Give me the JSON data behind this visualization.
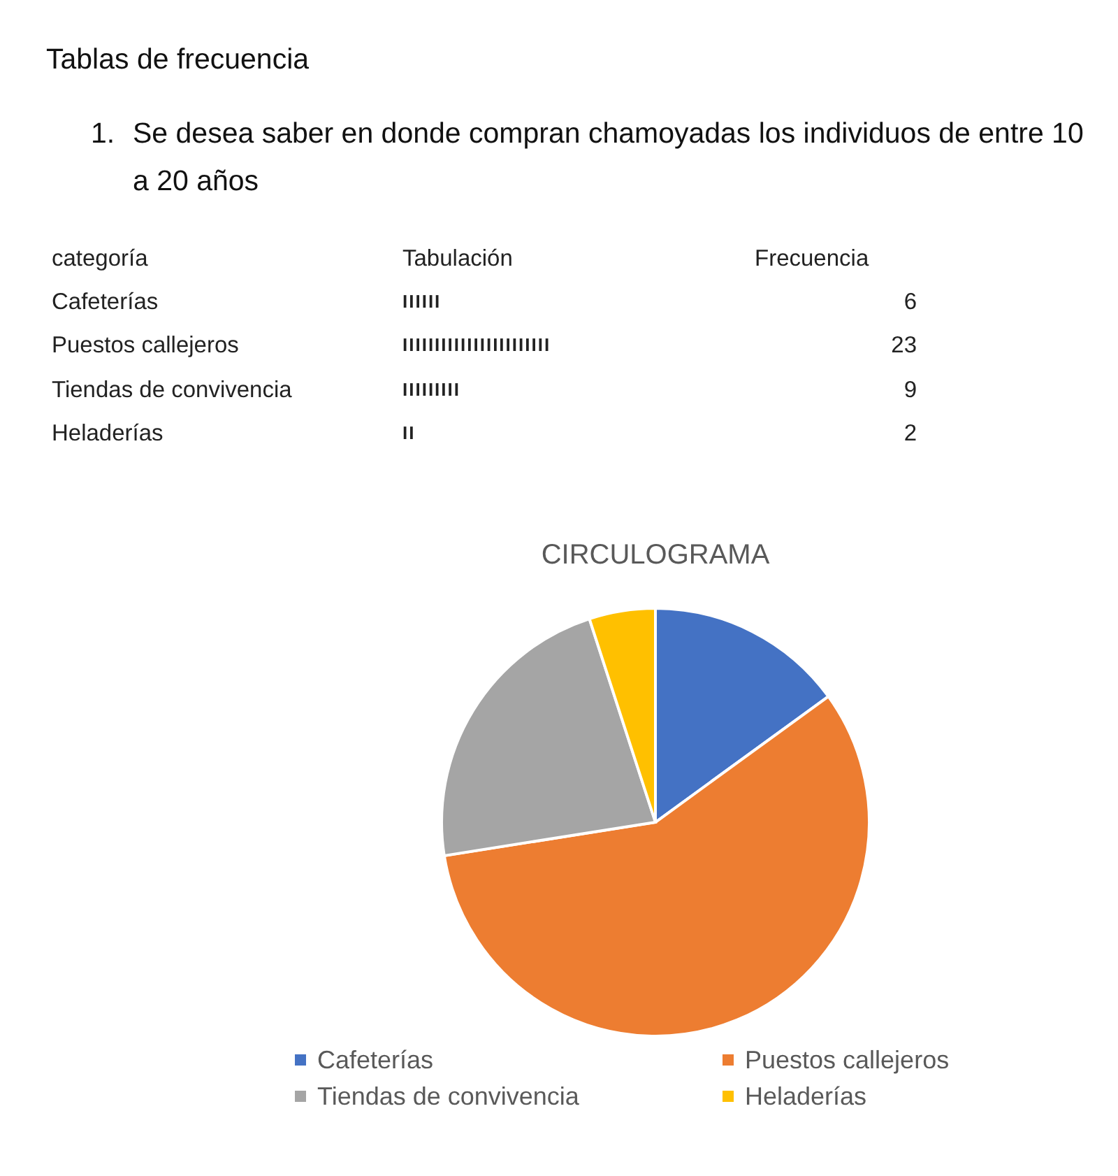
{
  "chart_data": [
    {
      "type": "other",
      "categories": [
        "Cafeterías",
        "Puestos callejeros",
        "Tiendas de convivencia",
        "Heladerías"
      ],
      "values": [
        6,
        23,
        9,
        2
      ],
      "data_labels": true,
      "annotations": [
        "Tablas de frecuencia",
        "1. Se desea saber en donde compran chamoyadas los individuos de entre 10 a 20 años",
        "categoría",
        "Tabulación",
        "Frecuencia",
        "IIIIII",
        "IIIIIIIIIIIIIIIIIIIIIII",
        "IIIIIIIII",
        "II"
      ]
    },
    {
      "type": "pie",
      "title": "CIRCULOGRAMA",
      "categories": [
        "Cafeterías",
        "Puestos callejeros",
        "Tiendas de convivencia",
        "Heladerías"
      ],
      "values": [
        15,
        57.5,
        22.5,
        5
      ],
      "colors": [
        "#4472c4",
        "#ed7d31",
        "#a5a5a5",
        "#ffc000"
      ],
      "legend": "bottom"
    }
  ]
}
